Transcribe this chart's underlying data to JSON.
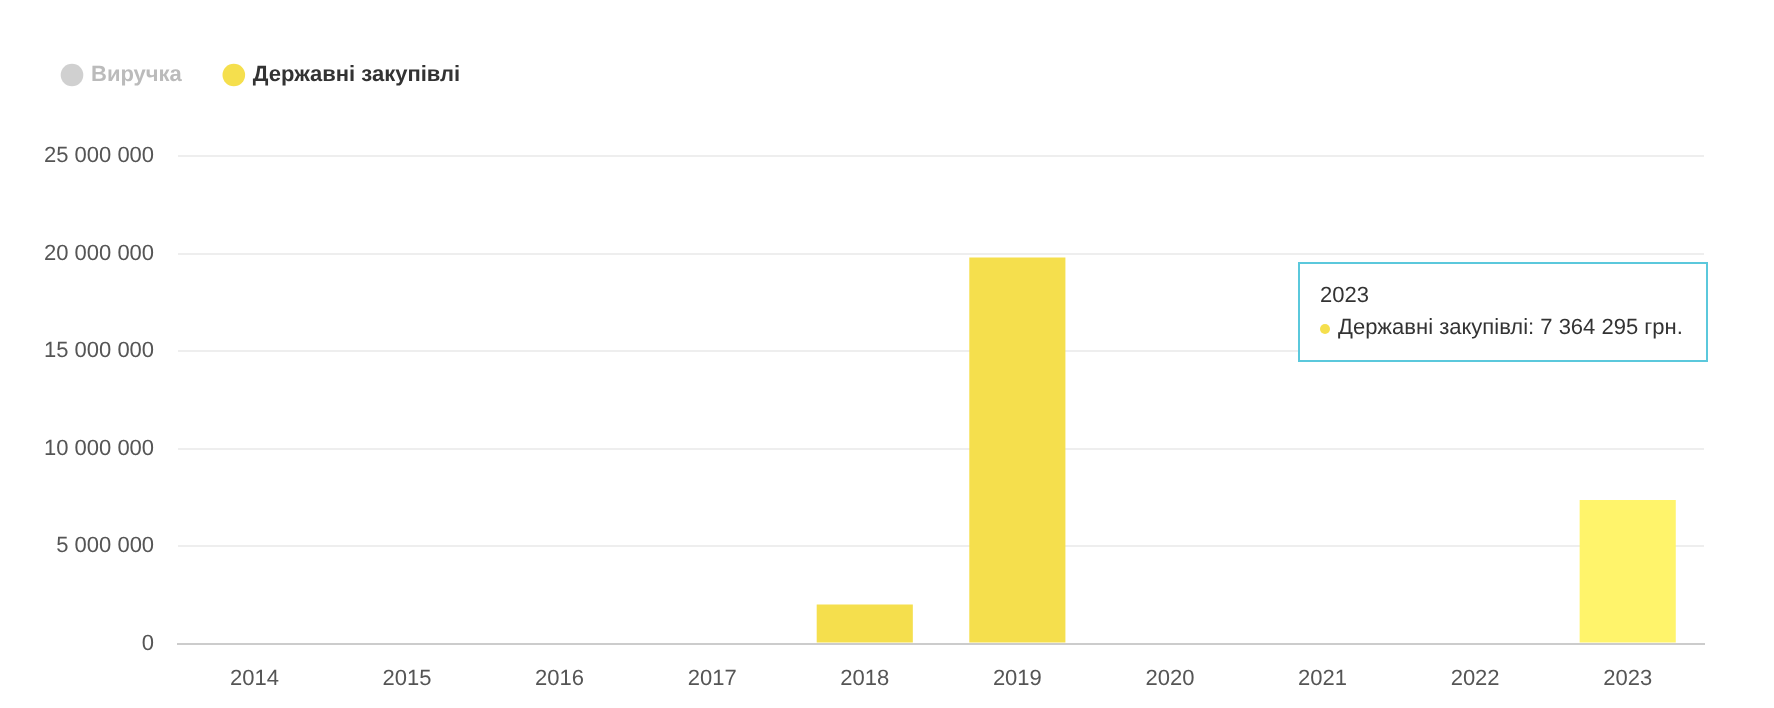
{
  "chart_data": {
    "type": "bar",
    "categories": [
      "2014",
      "2015",
      "2016",
      "2017",
      "2018",
      "2019",
      "2020",
      "2021",
      "2022",
      "2023"
    ],
    "series": [
      {
        "name": "Виручка",
        "color": "#d0d0d0",
        "values": [
          null,
          null,
          null,
          null,
          null,
          null,
          null,
          null,
          null,
          null
        ]
      },
      {
        "name": "Державні закупівлі",
        "color": "#f5df4d",
        "colors": [
          "#f5df4d",
          "#f5df4d",
          "#f5df4d",
          "#f5df4d",
          "#f5df4d",
          "#f5df4d",
          "#f5df4d",
          "#f5df4d",
          "#f5df4d",
          "#fff46b"
        ],
        "values": [
          null,
          null,
          null,
          null,
          2000000,
          19800000,
          null,
          null,
          null,
          7364295
        ]
      }
    ],
    "ylim": [
      0,
      25000000
    ],
    "yticks": [
      {
        "value": 0,
        "label": "0"
      },
      {
        "value": 5000000,
        "label": "5 000 000"
      },
      {
        "value": 10000000,
        "label": "10 000 000"
      },
      {
        "value": 15000000,
        "label": "15 000 000"
      },
      {
        "value": 20000000,
        "label": "20 000 000"
      },
      {
        "value": 25000000,
        "label": "25 000 000"
      }
    ],
    "grid": "y",
    "legend": "top left",
    "annotations": [
      "2023\nДержавні закупівлі: 7 364 295 грн."
    ]
  }
}
